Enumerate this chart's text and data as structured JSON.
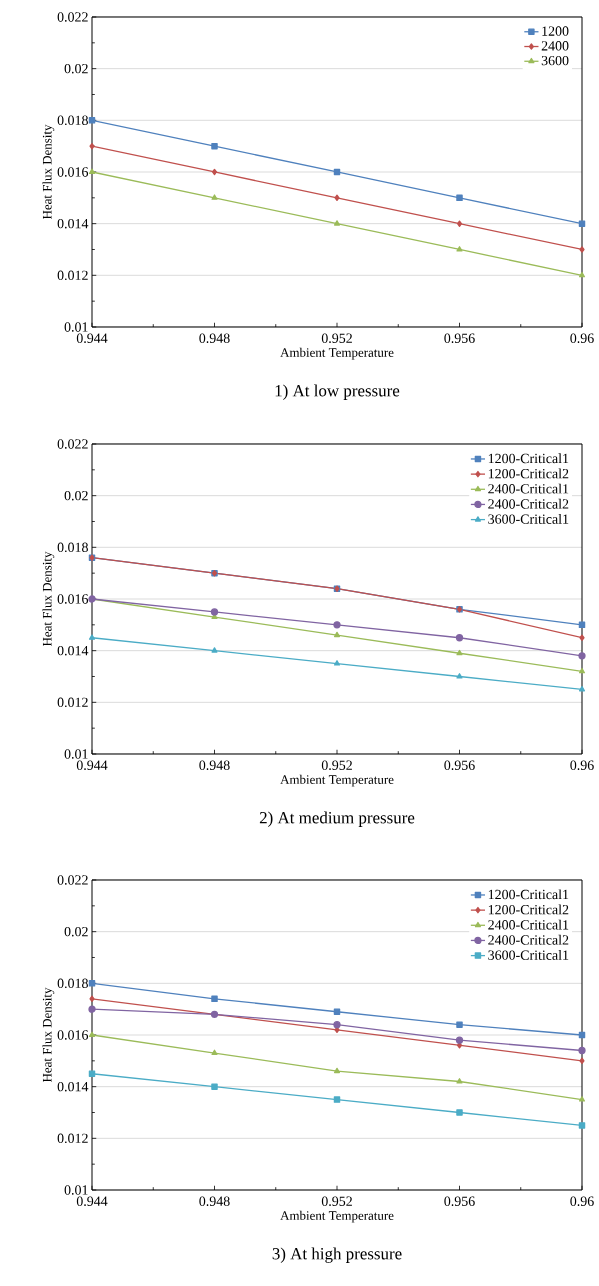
{
  "chart_data": [
    {
      "type": "line",
      "title": "1) At low pressure",
      "xlabel": "Ambient Temperature",
      "ylabel": "Heat Flux Density",
      "x": [
        0.944,
        0.948,
        0.952,
        0.956,
        0.96
      ],
      "xlim": [
        0.944,
        0.96
      ],
      "xticks": [
        0.944,
        0.948,
        0.952,
        0.956,
        0.96
      ],
      "ylim": [
        0.01,
        0.022
      ],
      "yticks": [
        0.01,
        0.012,
        0.014,
        0.016,
        0.018,
        0.02,
        0.022
      ],
      "grid": "y",
      "legend": "top right",
      "series": [
        {
          "name": "1200",
          "color": "#4f81bd",
          "marker": "square",
          "values": [
            0.018,
            0.017,
            0.016,
            0.015,
            0.014
          ]
        },
        {
          "name": "2400",
          "color": "#c0504d",
          "marker": "diamond",
          "values": [
            0.017,
            0.016,
            0.015,
            0.014,
            0.013
          ]
        },
        {
          "name": "3600",
          "color": "#9bbb59",
          "marker": "triangle",
          "values": [
            0.016,
            0.015,
            0.014,
            0.013,
            0.012
          ]
        }
      ]
    },
    {
      "type": "line",
      "title": "2) At medium pressure",
      "xlabel": "Ambient Temperature",
      "ylabel": "Heat Flux Density",
      "x": [
        0.944,
        0.948,
        0.952,
        0.956,
        0.96
      ],
      "xlim": [
        0.944,
        0.96
      ],
      "xticks": [
        0.944,
        0.948,
        0.952,
        0.956,
        0.96
      ],
      "ylim": [
        0.01,
        0.022
      ],
      "yticks": [
        0.01,
        0.012,
        0.014,
        0.016,
        0.018,
        0.02,
        0.022
      ],
      "grid": "y",
      "legend": "top right",
      "series": [
        {
          "name": "1200-Critical1",
          "color": "#4f81bd",
          "marker": "square",
          "values": [
            0.0176,
            0.017,
            0.0164,
            0.0156,
            0.015
          ]
        },
        {
          "name": "1200-Critical2",
          "color": "#c0504d",
          "marker": "diamond",
          "values": [
            0.0176,
            0.017,
            0.0164,
            0.0156,
            0.0145
          ]
        },
        {
          "name": "2400-Critical1",
          "color": "#9bbb59",
          "marker": "triangle",
          "values": [
            0.016,
            0.0153,
            0.0146,
            0.0139,
            0.0132
          ]
        },
        {
          "name": "2400-Critical2",
          "color": "#8064a2",
          "marker": "circle",
          "values": [
            0.016,
            0.0155,
            0.015,
            0.0145,
            0.0138
          ]
        },
        {
          "name": "3600-Critical1",
          "color": "#4bacc6",
          "marker": "triangle",
          "values": [
            0.0145,
            0.014,
            0.0135,
            0.013,
            0.0125
          ]
        }
      ]
    },
    {
      "type": "line",
      "title": "3) At high pressure",
      "xlabel": "Ambient Temperature",
      "ylabel": "Heat Flux Density",
      "x": [
        0.944,
        0.948,
        0.952,
        0.956,
        0.96
      ],
      "xlim": [
        0.944,
        0.96
      ],
      "xticks": [
        0.944,
        0.948,
        0.952,
        0.956,
        0.96
      ],
      "ylim": [
        0.01,
        0.022
      ],
      "yticks": [
        0.01,
        0.012,
        0.014,
        0.016,
        0.018,
        0.02,
        0.022
      ],
      "grid": "y",
      "legend": "top right",
      "series": [
        {
          "name": "1200-Critical1",
          "color": "#4f81bd",
          "marker": "square",
          "values": [
            0.018,
            0.0174,
            0.0169,
            0.0164,
            0.016
          ]
        },
        {
          "name": "1200-Critical2",
          "color": "#c0504d",
          "marker": "diamond",
          "values": [
            0.0174,
            0.0168,
            0.0162,
            0.0156,
            0.015
          ]
        },
        {
          "name": "2400-Critical1",
          "color": "#9bbb59",
          "marker": "triangle",
          "values": [
            0.016,
            0.0153,
            0.0146,
            0.0142,
            0.0135
          ]
        },
        {
          "name": "2400-Critical2",
          "color": "#8064a2",
          "marker": "circle",
          "values": [
            0.017,
            0.0168,
            0.0164,
            0.0158,
            0.0154
          ]
        },
        {
          "name": "3600-Critical1",
          "color": "#4bacc6",
          "marker": "square",
          "values": [
            0.0145,
            0.014,
            0.0135,
            0.013,
            0.0125
          ]
        }
      ]
    }
  ]
}
